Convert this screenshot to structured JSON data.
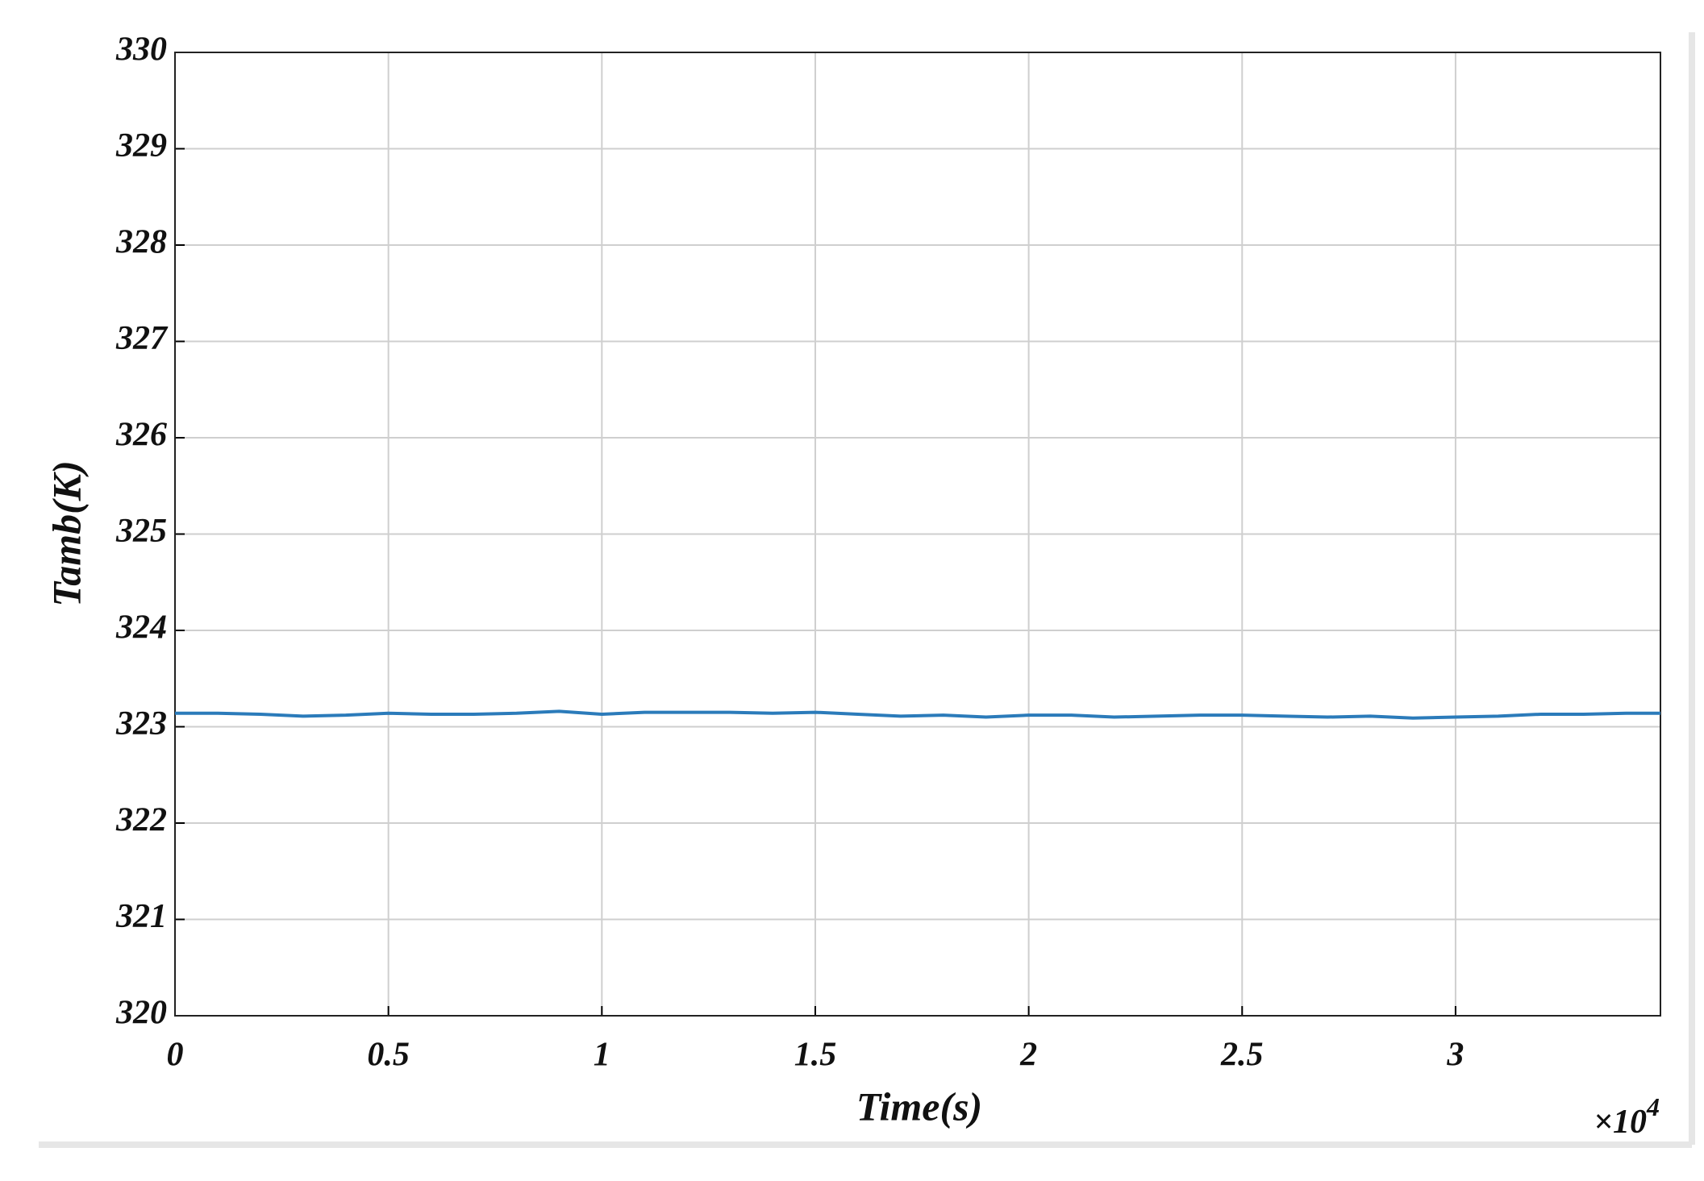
{
  "chart_data": {
    "type": "line",
    "x_label": "Time(s)",
    "y_label": "Tamb(K)",
    "x_multiplier": {
      "base": "×10",
      "exponent": "4"
    },
    "x": [
      0,
      0.1,
      0.2,
      0.3,
      0.4,
      0.5,
      0.6,
      0.7,
      0.8,
      0.9,
      1.0,
      1.1,
      1.2,
      1.3,
      1.4,
      1.5,
      1.6,
      1.7,
      1.8,
      1.9,
      2.0,
      2.1,
      2.2,
      2.3,
      2.4,
      2.5,
      2.6,
      2.7,
      2.8,
      2.9,
      3.0,
      3.1,
      3.2,
      3.3,
      3.4,
      3.48
    ],
    "series": [
      {
        "name": "Tamb",
        "color": "#2b7bba",
        "values": [
          323.14,
          323.14,
          323.13,
          323.11,
          323.12,
          323.14,
          323.13,
          323.13,
          323.14,
          323.16,
          323.13,
          323.15,
          323.15,
          323.15,
          323.14,
          323.15,
          323.13,
          323.11,
          323.12,
          323.1,
          323.12,
          323.12,
          323.1,
          323.11,
          323.12,
          323.12,
          323.11,
          323.1,
          323.11,
          323.09,
          323.1,
          323.11,
          323.13,
          323.13,
          323.14,
          323.14
        ]
      }
    ],
    "xlim": [
      0,
      3.48
    ],
    "ylim": [
      320,
      330
    ],
    "xticks": [
      0,
      0.5,
      1,
      1.5,
      2,
      2.5,
      3
    ],
    "yticks": [
      320,
      321,
      322,
      323,
      324,
      325,
      326,
      327,
      328,
      329,
      330
    ],
    "grid": true
  }
}
